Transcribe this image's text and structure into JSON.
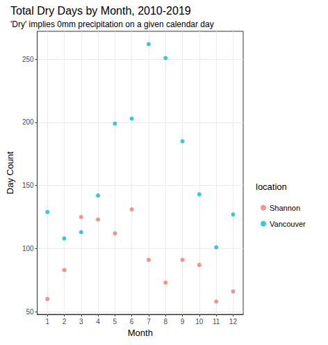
{
  "chart_data": {
    "type": "scatter",
    "title": "Total Dry Days by Month, 2010-2019",
    "subtitle": "'Dry' implies 0mm precipitation on a given calendar day",
    "x_label": "Month",
    "y_label": "Day Count",
    "legend_title": "location",
    "x": [
      1,
      2,
      3,
      4,
      5,
      6,
      7,
      8,
      9,
      10,
      11,
      12
    ],
    "series": [
      {
        "name": "Shannon",
        "color": "#F8766D",
        "values": [
          60,
          83,
          125,
          123,
          112,
          131,
          91,
          73,
          91,
          87,
          58,
          66
        ]
      },
      {
        "name": "Vancouver",
        "color": "#00BFC4",
        "values": [
          129,
          108,
          113,
          142,
          199,
          203,
          262,
          251,
          185,
          143,
          101,
          127
        ]
      }
    ],
    "xlim": [
      0.4,
      12.6
    ],
    "xticks": [
      1,
      2,
      3,
      4,
      5,
      6,
      7,
      8,
      9,
      10,
      11,
      12
    ],
    "ylim": [
      47.8,
      272.2
    ],
    "yticks": [
      50,
      100,
      150,
      200,
      250
    ],
    "grid": true,
    "legend": "right",
    "marker": "circle"
  }
}
